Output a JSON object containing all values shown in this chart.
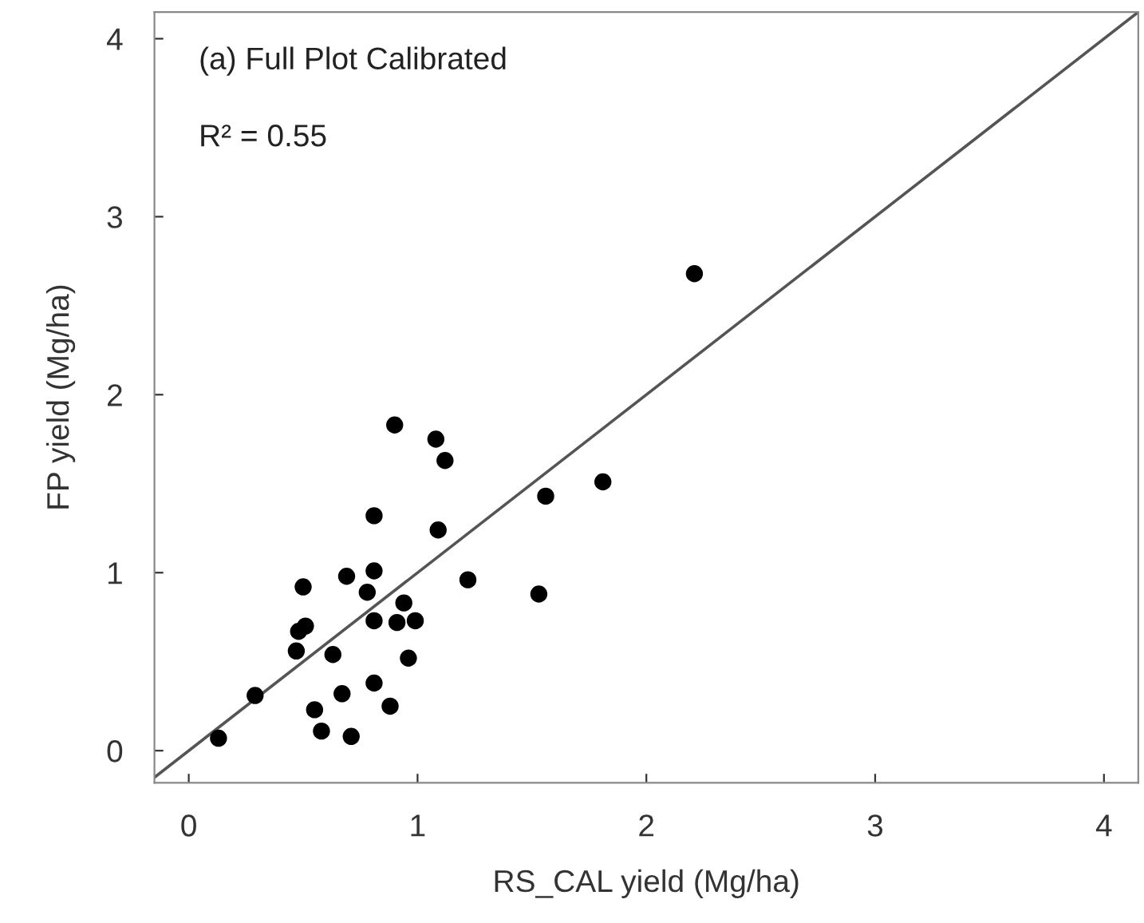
{
  "chart_data": {
    "type": "scatter",
    "xlabel": "RS_CAL yield (Mg/ha)",
    "ylabel": "FP yield (Mg/ha)",
    "annotations": [
      "(a) Full Plot Calibrated",
      "R² = 0.55"
    ],
    "xlim": [
      -0.15,
      4.15
    ],
    "ylim": [
      -0.18,
      4.15
    ],
    "xticks": [
      0,
      1,
      2,
      3,
      4
    ],
    "yticks": [
      0,
      1,
      2,
      3,
      4
    ],
    "grid": false,
    "marker": "circle",
    "series": [
      {
        "color": "#000000",
        "x": [
          0.13,
          0.29,
          0.55,
          0.58,
          0.71,
          0.67,
          0.81,
          0.88,
          0.96,
          0.47,
          0.63,
          0.48,
          0.51,
          0.5,
          0.69,
          0.81,
          0.78,
          0.81,
          0.91,
          0.99,
          0.94,
          1.22,
          1.53,
          0.81,
          1.09,
          1.56,
          1.81,
          1.12,
          1.08,
          0.9,
          2.21
        ],
        "values": [
          0.07,
          0.31,
          0.23,
          0.11,
          0.08,
          0.32,
          0.38,
          0.25,
          0.52,
          0.56,
          0.54,
          0.67,
          0.7,
          0.92,
          0.98,
          1.01,
          0.89,
          0.73,
          0.72,
          0.73,
          0.83,
          0.96,
          0.88,
          1.32,
          1.24,
          1.43,
          1.51,
          1.63,
          1.75,
          1.83,
          2.68
        ]
      },
      {
        "type": "line",
        "color": "#555555",
        "x": [
          -0.15,
          4.15
        ],
        "values": [
          -0.15,
          4.15
        ],
        "marker": "none"
      }
    ]
  }
}
